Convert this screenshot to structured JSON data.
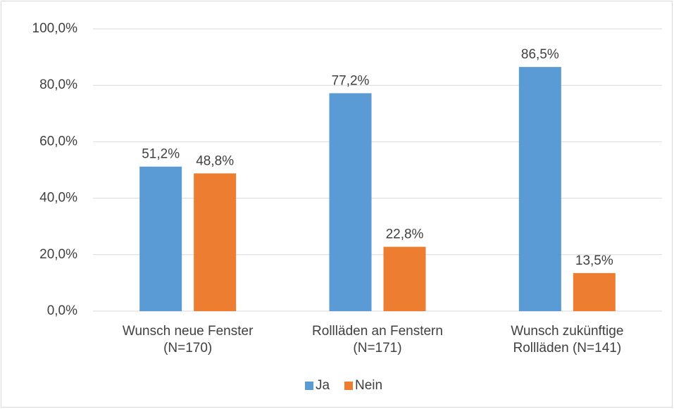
{
  "chart_data": {
    "type": "bar",
    "categories": [
      [
        "Wunsch neue Fenster",
        "(N=170)"
      ],
      [
        "Rollläden an Fenstern",
        "(N=171)"
      ],
      [
        "Wunsch zukünftige",
        "Rollläden (N=141)"
      ]
    ],
    "series": [
      {
        "name": "Ja",
        "color": "#5b9bd5",
        "values": [
          51.2,
          77.2,
          86.5
        ],
        "value_labels": [
          "51,2%",
          "77,2%",
          "86,5%"
        ]
      },
      {
        "name": "Nein",
        "color": "#ed7d31",
        "values": [
          48.8,
          22.8,
          13.5
        ],
        "value_labels": [
          "48,8%",
          "22,8%",
          "13,5%"
        ]
      }
    ],
    "ylim": [
      0,
      100
    ],
    "yticks": [
      {
        "value": 0,
        "label": "0,0%"
      },
      {
        "value": 20,
        "label": "20,0%"
      },
      {
        "value": 40,
        "label": "40,0%"
      },
      {
        "value": 60,
        "label": "60,0%"
      },
      {
        "value": 80,
        "label": "80,0%"
      },
      {
        "value": 100,
        "label": "100,0%"
      }
    ],
    "grid": true,
    "legend": "bottom"
  }
}
